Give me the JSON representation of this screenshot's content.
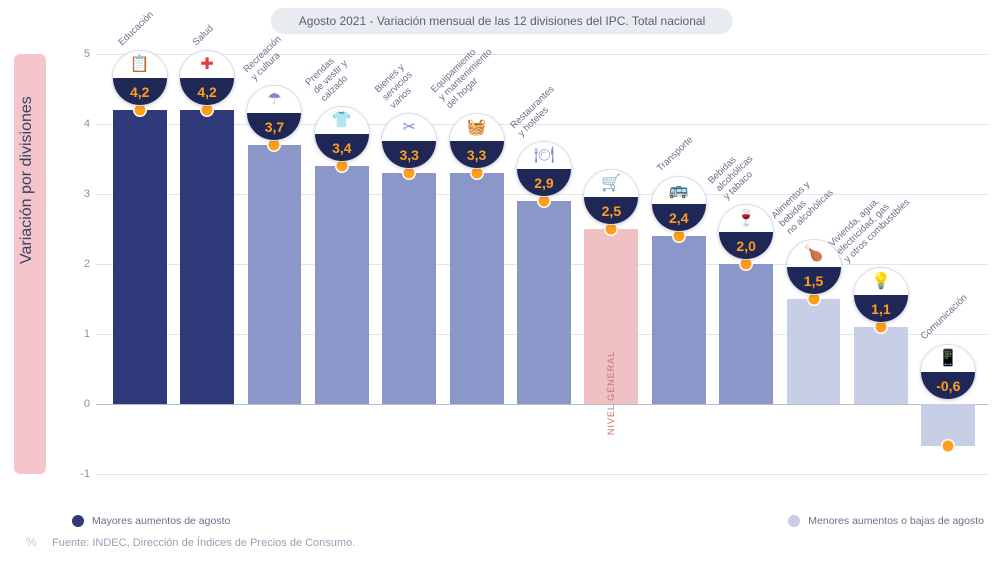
{
  "title": "Agosto 2021 - Variación mensual de las 12 divisiones del IPC. Total nacional",
  "y_axis_label": "Variación por divisiones",
  "chart": {
    "type": "bar",
    "ylim": [
      -1,
      5
    ],
    "yticks": [
      -1,
      0,
      1,
      2,
      3,
      4,
      5
    ],
    "grid_color": "#e2e5ec",
    "baseline_color": "#b8bdca",
    "background_color": "#ffffff",
    "categories": [
      {
        "label": "Educación",
        "value": 4.2,
        "color": "#2e3a7a",
        "bubble_bg": "#1f2756",
        "icon": "📋",
        "icon_color": "#9fb4ff"
      },
      {
        "label": "Salud",
        "value": 4.2,
        "color": "#2e3a7a",
        "bubble_bg": "#1f2756",
        "icon": "✚",
        "icon_color": "#e63b3b"
      },
      {
        "label": "Recreación\ny cultura",
        "value": 3.7,
        "color": "#8b96c9",
        "bubble_bg": "#1f2756",
        "icon": "☂",
        "icon_color": "#7b8bce"
      },
      {
        "label": "Prendas\nde vestir y\ncalzado",
        "value": 3.4,
        "color": "#8b96c9",
        "bubble_bg": "#1f2756",
        "icon": "👕",
        "icon_color": "#e66a4a"
      },
      {
        "label": "Bienes y\nservicios\nvarios",
        "value": 3.3,
        "color": "#8b96c9",
        "bubble_bg": "#1f2756",
        "icon": "✂",
        "icon_color": "#7b8bce"
      },
      {
        "label": "Equipamiento\ny mantenimiento\ndel hogar",
        "value": 3.3,
        "color": "#8b96c9",
        "bubble_bg": "#1f2756",
        "icon": "🧺",
        "icon_color": "#e63b3b"
      },
      {
        "label": "Restaurantes\ny hoteles",
        "value": 2.9,
        "color": "#8b96c9",
        "bubble_bg": "#1f2756",
        "icon": "🍽",
        "icon_color": "#7b8bce"
      },
      {
        "label": "NIVEL GENERAL",
        "value": 2.5,
        "color": "#f0c1c3",
        "bubble_bg": "#1f2756",
        "icon": "🛒",
        "icon_color": "#e63b3b",
        "is_general": true
      },
      {
        "label": "Transporte",
        "value": 2.4,
        "color": "#8b96c9",
        "bubble_bg": "#1f2756",
        "icon": "🚌",
        "icon_color": "#5bb3e6"
      },
      {
        "label": "Bebidas\nalcohólicas\ny tabaco",
        "value": 2.0,
        "color": "#8b96c9",
        "bubble_bg": "#1f2756",
        "icon": "🍷",
        "icon_color": "#c94b4b"
      },
      {
        "label": "Alimentos y\nbebidas\nno alcohólicas",
        "value": 1.5,
        "color": "#c8cee6",
        "bubble_bg": "#1f2756",
        "icon": "🍗",
        "icon_color": "#e8a24a"
      },
      {
        "label": "Vivienda, agua,\nelectricidad, gas\ny otros combustibles",
        "value": 1.1,
        "color": "#c8cee6",
        "bubble_bg": "#1f2756",
        "icon": "💡",
        "icon_color": "#7b8bce"
      },
      {
        "label": "Comunicación",
        "value": -0.6,
        "color": "#c8cee6",
        "bubble_bg": "#1f2756",
        "icon": "📱",
        "icon_color": "#9fb4ff"
      }
    ],
    "marker_color": "#ff9e1b",
    "value_color": "#ff9e1b",
    "bar_width_ratio": 0.8
  },
  "legend": {
    "high": {
      "color": "#2e3a7a",
      "text": "Mayores aumentos de agosto"
    },
    "low": {
      "color": "#c8cee6",
      "text": "Menores aumentos o bajas de agosto"
    }
  },
  "source_prefix": "%",
  "source": "Fuente: INDEC, Dirección de Índices de Precios de Consumo.",
  "nivel_general_text": "NIVEL GENERAL"
}
